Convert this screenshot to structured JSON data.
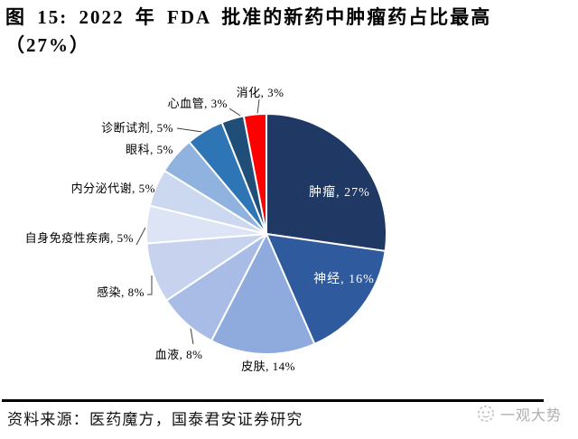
{
  "figure": {
    "title_line1": "图 15: 2022 年 FDA 批准的新药中肿瘤药占比最高",
    "title_line2": "（27%）"
  },
  "chart_data": {
    "type": "pie",
    "title": "图 15: 2022 年 FDA 批准的新药中肿瘤药占比最高（27%）",
    "categories": [
      "肿瘤",
      "神经",
      "皮肤",
      "血液",
      "感染",
      "自身免疫性疾病",
      "内分泌代谢",
      "眼科",
      "诊断试剂",
      "心血管",
      "消化"
    ],
    "values": [
      27,
      16,
      14,
      8,
      8,
      5,
      5,
      5,
      5,
      3,
      3
    ],
    "unit": "%",
    "label_template": "{name}, {value}%",
    "colors": [
      "#1F3864",
      "#2F5B9E",
      "#8FAADC",
      "#A9BCE5",
      "#C7D3EE",
      "#DCE4F5",
      "#CBD8F0",
      "#8FB2DF",
      "#2E75B6",
      "#1F4E79",
      "#FE0000"
    ],
    "inside_label_color": "#FFFFFF",
    "outside_label_color": "#000000",
    "start_angle_deg": 0,
    "direction": "clockwise",
    "legend": "none",
    "labels_inside": [
      "肿瘤",
      "神经"
    ]
  },
  "source": {
    "text": "资料来源：医药魔方，国泰君安证券研究"
  },
  "watermark": {
    "text": "一观大势"
  }
}
